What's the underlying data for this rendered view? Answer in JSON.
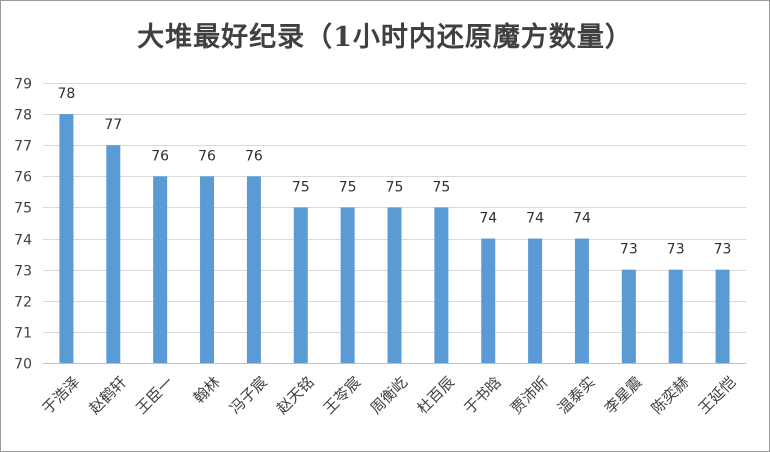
{
  "chart_data": {
    "type": "bar",
    "title": "大堆最好纪录（1小时内还原魔方数量）",
    "xlabel": "",
    "ylabel": "",
    "categories": [
      "于浩泽",
      "赵鹤轩",
      "王臣一",
      "翰林",
      "冯子宸",
      "赵天铭",
      "王苓宸",
      "周衡屹",
      "杜百辰",
      "于书晗",
      "贾沛昕",
      "温泰实",
      "李星震",
      "陈奕赫",
      "王延恺"
    ],
    "values": [
      78,
      77,
      76,
      76,
      76,
      75,
      75,
      75,
      75,
      74,
      74,
      74,
      73,
      73,
      73
    ],
    "ylim": [
      70,
      79
    ],
    "yticks": [
      70,
      71,
      72,
      73,
      74,
      75,
      76,
      77,
      78,
      79
    ],
    "grid": true,
    "data_labels": true,
    "bar_color": "#5b9bd5",
    "grid_color": "#d9d9d9"
  }
}
